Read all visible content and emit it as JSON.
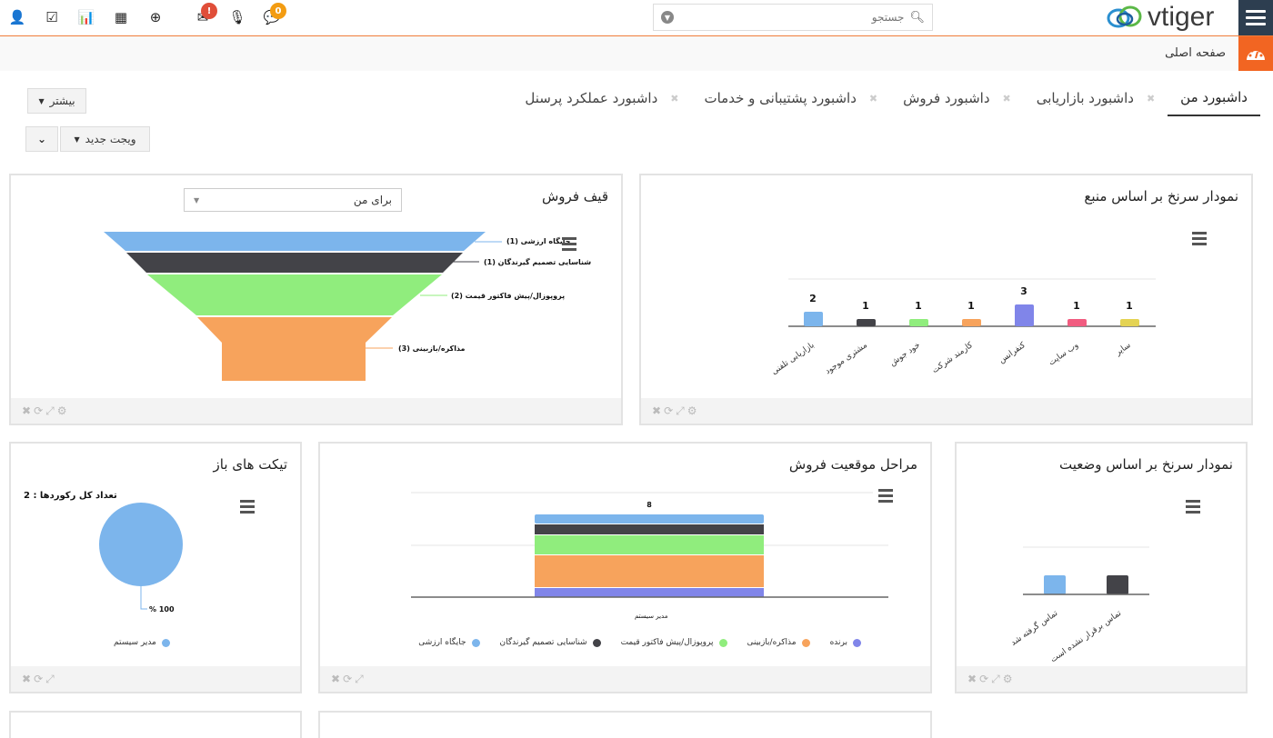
{
  "topbar": {
    "icons": [
      {
        "name": "user-icon",
        "glyph": "👤"
      },
      {
        "name": "tasks-icon",
        "glyph": "☑"
      },
      {
        "name": "reports-icon",
        "glyph": "📊"
      },
      {
        "name": "calendar-icon",
        "glyph": "▦"
      },
      {
        "name": "quick-create-icon",
        "glyph": "⊕"
      },
      {
        "name": "mail-icon",
        "glyph": "✉",
        "badge": "!",
        "badge_color": "#e04e39"
      },
      {
        "name": "mic-off-icon",
        "glyph": "🎙"
      },
      {
        "name": "chat-icon",
        "glyph": "💬",
        "badge": "0",
        "badge_color": "#f39c12"
      }
    ],
    "search_placeholder": "جستجو",
    "logo_text": "vtiger"
  },
  "breadcrumb": {
    "home": "صفحه اصلی"
  },
  "tabs": [
    {
      "label": "داشبورد من",
      "active": true
    },
    {
      "label": "داشبورد بازاریابی",
      "active": false
    },
    {
      "label": "داشبورد فروش",
      "active": false
    },
    {
      "label": "داشبورد پشتیبانی و خدمات",
      "active": false
    },
    {
      "label": "داشبورد عملکرد پرسنل",
      "active": false
    }
  ],
  "buttons": {
    "more": "بیشتر",
    "new_widget": "ویجت جدید"
  },
  "widgets": {
    "funnel": {
      "title": "قیف فروش",
      "filter": "برای من"
    },
    "lead_source": {
      "title": "نمودار سرنخ بر اساس منبع"
    },
    "open_tickets": {
      "title": "تیکت های باز",
      "total": "تعداد کل رکوردها : 2",
      "pct": "100 %",
      "legend": "مدیر سیستم"
    },
    "sales_stage": {
      "title": "مراحل موقعیت فروش",
      "total": "8",
      "xlabel": "مدیر سیستم"
    },
    "lead_status": {
      "title": "نمودار سرنخ بر اساس وضعیت"
    }
  },
  "colors": {
    "accent": "#f26522",
    "nav": "#2d3e50",
    "blue": "#7cb5ec",
    "dark": "#434348",
    "green": "#90ed7d",
    "orange": "#f7a35c",
    "purple": "#8085e9",
    "pink": "#f15c80",
    "yellow": "#e4d354"
  },
  "chart_data": [
    {
      "type": "funnel",
      "title": "قیف فروش",
      "categories": [
        "جایگاه ارزشی",
        "شناسایی تصمیم گیرندگان",
        "پروپوزال/پیش فاکتور قیمت",
        "مذاکره/بازبینی"
      ],
      "values": [
        1,
        1,
        2,
        3
      ],
      "labels": [
        "جایگاه ارزشی (1)",
        "شناسایی تصمیم گیرندگان (1)",
        "پروپوزال/پیش فاکتور قیمت (2)",
        "مذاکره/بازبینی (3)"
      ]
    },
    {
      "type": "bar",
      "title": "نمودار سرنخ بر اساس منبع",
      "categories": [
        "بازاریابی تلفنی",
        "مشتری موجود",
        "خود جوش",
        "کارمند شرکت",
        "کنفرانس",
        "وب سایت",
        "سایر"
      ],
      "values": [
        2,
        1,
        1,
        1,
        3,
        1,
        1
      ]
    },
    {
      "type": "pie",
      "title": "تیکت های باز",
      "categories": [
        "مدیر سیستم"
      ],
      "values": [
        100
      ],
      "subtitle": "تعداد کل رکوردها : 2"
    },
    {
      "type": "bar",
      "stacked": true,
      "title": "مراحل موقعیت فروش",
      "categories": [
        "مدیر سیستم"
      ],
      "series": [
        {
          "name": "برنده",
          "values": [
            1
          ]
        },
        {
          "name": "مذاکره/بازبینی",
          "values": [
            3
          ]
        },
        {
          "name": "پروپوزال/پیش فاکتور قیمت",
          "values": [
            2
          ]
        },
        {
          "name": "شناسایی تصمیم گیرندگان",
          "values": [
            1
          ]
        },
        {
          "name": "جایگاه ارزشی",
          "values": [
            1
          ]
        }
      ],
      "total": 8
    },
    {
      "type": "bar",
      "title": "نمودار سرنخ بر اساس وضعیت",
      "categories": [
        "تماس گرفته شد",
        "تماس برقرار نشده است"
      ],
      "values": [
        1,
        1
      ]
    }
  ]
}
